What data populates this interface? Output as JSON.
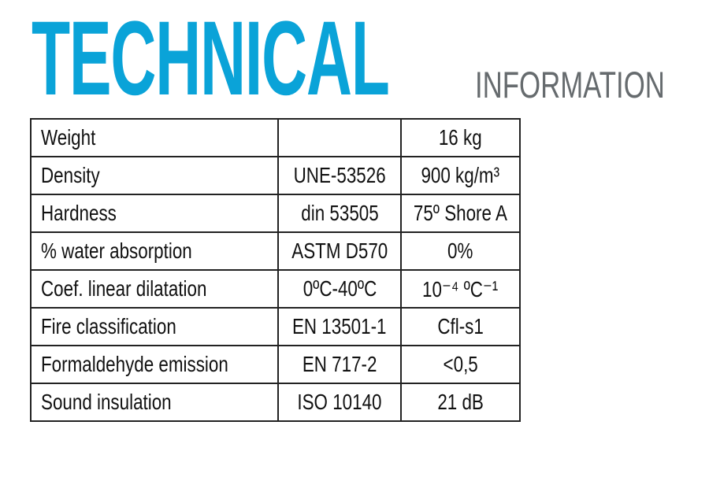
{
  "header": {
    "title": "TECHNICAL",
    "subtitle": "INFORMATION"
  },
  "table": {
    "rows": [
      {
        "property": "Weight",
        "standard": "",
        "value": "16 kg"
      },
      {
        "property": "Density",
        "standard": "UNE-53526",
        "value": "900 kg/m³"
      },
      {
        "property": "Hardness",
        "standard": "din 53505",
        "value": "75º Shore A"
      },
      {
        "property": "% water absorption",
        "standard": "ASTM D570",
        "value": "0%"
      },
      {
        "property": "Coef. linear dilatation",
        "standard": "0ºC-40ºC",
        "value": "10⁻⁴  ºC⁻¹"
      },
      {
        "property": "Fire classification",
        "standard": "EN 13501-1",
        "value": "Cfl-s1"
      },
      {
        "property": "Formaldehyde emission",
        "standard": "EN 717-2",
        "value": "<0,5"
      },
      {
        "property": "Sound insulation",
        "standard": "ISO 10140",
        "value": "21 dB"
      }
    ]
  },
  "colors": {
    "title": "#0aa3d8",
    "subtitle": "#666b6e",
    "border": "#222222"
  }
}
